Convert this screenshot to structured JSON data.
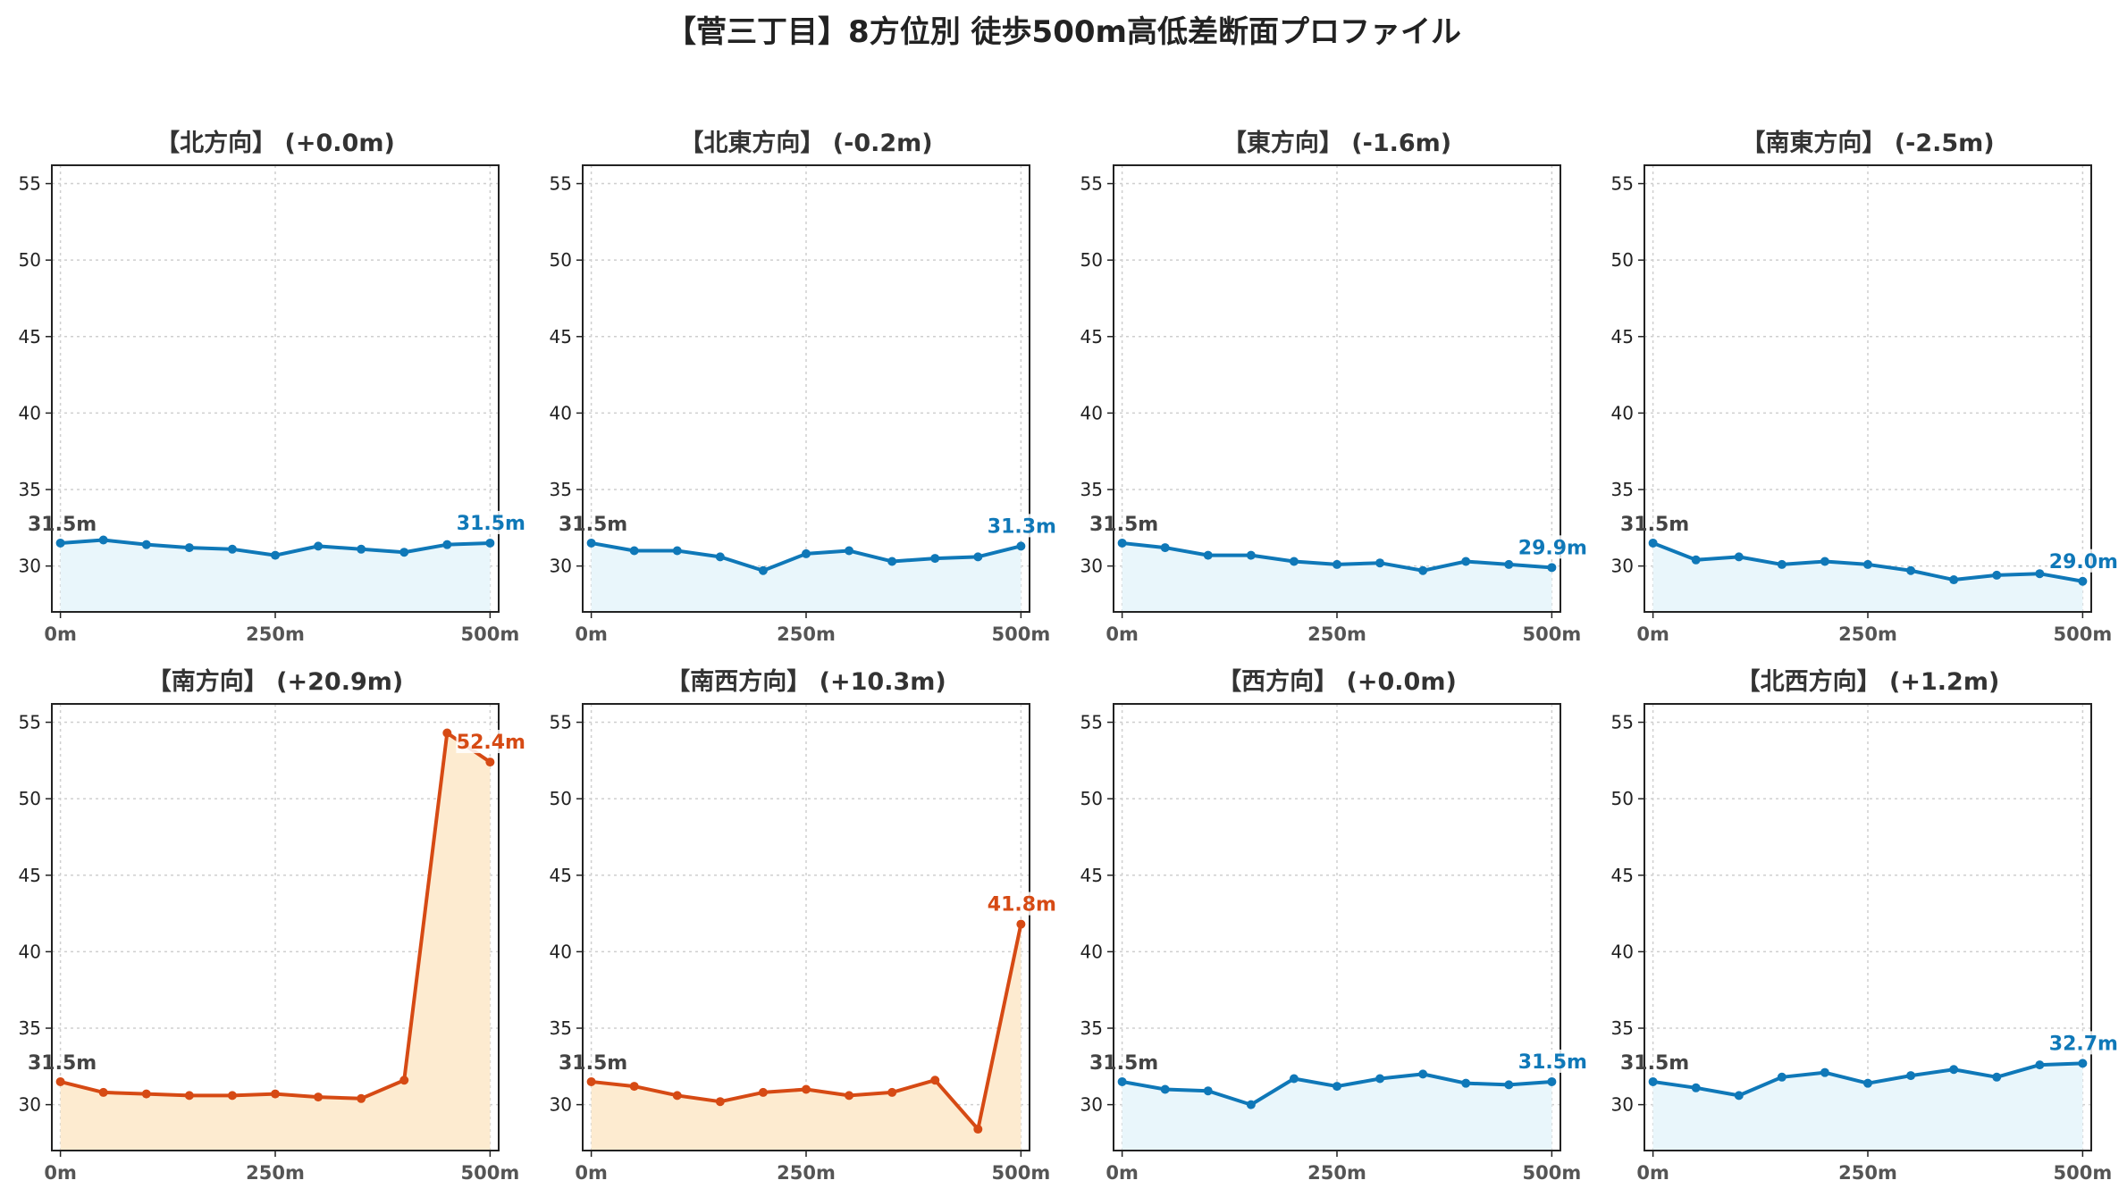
{
  "title": "【菅三丁目】8方位別 徒歩500m高低差断面プロファイル",
  "colors": {
    "up_line": "#d64a14",
    "up_fill": "#fdebd0",
    "down_line": "#0f78b8",
    "down_fill": "#e9f6fb",
    "start_label": "#444444"
  },
  "chart_data": [
    {
      "type": "line",
      "title": "【北方向】 (+0.0m)",
      "x": [
        0,
        50,
        100,
        150,
        200,
        250,
        300,
        350,
        400,
        450,
        500
      ],
      "values": [
        31.5,
        31.7,
        31.4,
        31.2,
        31.1,
        30.7,
        31.3,
        31.1,
        30.9,
        31.4,
        31.5
      ],
      "start_label": "31.5m",
      "end_label": "31.5m",
      "trend": "down",
      "xticks": [
        "0m",
        "250m",
        "500m"
      ],
      "yticks": [
        30,
        35,
        40,
        45,
        50,
        55
      ],
      "ylim": [
        27,
        56.2
      ],
      "xlim": [
        -10,
        510
      ],
      "grid": true
    },
    {
      "type": "line",
      "title": "【北東方向】 (-0.2m)",
      "x": [
        0,
        50,
        100,
        150,
        200,
        250,
        300,
        350,
        400,
        450,
        500
      ],
      "values": [
        31.5,
        31.0,
        31.0,
        30.6,
        29.7,
        30.8,
        31.0,
        30.3,
        30.5,
        30.6,
        31.3
      ],
      "start_label": "31.5m",
      "end_label": "31.3m",
      "trend": "down",
      "xticks": [
        "0m",
        "250m",
        "500m"
      ],
      "yticks": [
        30,
        35,
        40,
        45,
        50,
        55
      ],
      "ylim": [
        27,
        56.2
      ],
      "xlim": [
        -10,
        510
      ],
      "grid": true
    },
    {
      "type": "line",
      "title": "【東方向】 (-1.6m)",
      "x": [
        0,
        50,
        100,
        150,
        200,
        250,
        300,
        350,
        400,
        450,
        500
      ],
      "values": [
        31.5,
        31.2,
        30.7,
        30.7,
        30.3,
        30.1,
        30.2,
        29.7,
        30.3,
        30.1,
        29.9
      ],
      "start_label": "31.5m",
      "end_label": "29.9m",
      "trend": "down",
      "xticks": [
        "0m",
        "250m",
        "500m"
      ],
      "yticks": [
        30,
        35,
        40,
        45,
        50,
        55
      ],
      "ylim": [
        27,
        56.2
      ],
      "xlim": [
        -10,
        510
      ],
      "grid": true
    },
    {
      "type": "line",
      "title": "【南東方向】 (-2.5m)",
      "x": [
        0,
        50,
        100,
        150,
        200,
        250,
        300,
        350,
        400,
        450,
        500
      ],
      "values": [
        31.5,
        30.4,
        30.6,
        30.1,
        30.3,
        30.1,
        29.7,
        29.1,
        29.4,
        29.5,
        29.0
      ],
      "start_label": "31.5m",
      "end_label": "29.0m",
      "trend": "down",
      "xticks": [
        "0m",
        "250m",
        "500m"
      ],
      "yticks": [
        30,
        35,
        40,
        45,
        50,
        55
      ],
      "ylim": [
        27,
        56.2
      ],
      "xlim": [
        -10,
        510
      ],
      "grid": true
    },
    {
      "type": "line",
      "title": "【南方向】 (+20.9m)",
      "x": [
        0,
        50,
        100,
        150,
        200,
        250,
        300,
        350,
        400,
        450,
        500
      ],
      "values": [
        31.5,
        30.8,
        30.7,
        30.6,
        30.6,
        30.7,
        30.5,
        30.4,
        31.6,
        54.3,
        52.4
      ],
      "start_label": "31.5m",
      "end_label": "52.4m",
      "trend": "up",
      "xticks": [
        "0m",
        "250m",
        "500m"
      ],
      "yticks": [
        30,
        35,
        40,
        45,
        50,
        55
      ],
      "ylim": [
        27,
        56.2
      ],
      "xlim": [
        -10,
        510
      ],
      "grid": true
    },
    {
      "type": "line",
      "title": "【南西方向】 (+10.3m)",
      "x": [
        0,
        50,
        100,
        150,
        200,
        250,
        300,
        350,
        400,
        450,
        500
      ],
      "values": [
        31.5,
        31.2,
        30.6,
        30.2,
        30.8,
        31.0,
        30.6,
        30.8,
        31.6,
        28.4,
        41.8
      ],
      "start_label": "31.5m",
      "end_label": "41.8m",
      "trend": "up",
      "xticks": [
        "0m",
        "250m",
        "500m"
      ],
      "yticks": [
        30,
        35,
        40,
        45,
        50,
        55
      ],
      "ylim": [
        27,
        56.2
      ],
      "xlim": [
        -10,
        510
      ],
      "grid": true
    },
    {
      "type": "line",
      "title": "【西方向】 (+0.0m)",
      "x": [
        0,
        50,
        100,
        150,
        200,
        250,
        300,
        350,
        400,
        450,
        500
      ],
      "values": [
        31.5,
        31.0,
        30.9,
        30.0,
        31.7,
        31.2,
        31.7,
        32.0,
        31.4,
        31.3,
        31.5
      ],
      "start_label": "31.5m",
      "end_label": "31.5m",
      "trend": "down",
      "xticks": [
        "0m",
        "250m",
        "500m"
      ],
      "yticks": [
        30,
        35,
        40,
        45,
        50,
        55
      ],
      "ylim": [
        27,
        56.2
      ],
      "xlim": [
        -10,
        510
      ],
      "grid": true
    },
    {
      "type": "line",
      "title": "【北西方向】 (+1.2m)",
      "x": [
        0,
        50,
        100,
        150,
        200,
        250,
        300,
        350,
        400,
        450,
        500
      ],
      "values": [
        31.5,
        31.1,
        30.6,
        31.8,
        32.1,
        31.4,
        31.9,
        32.3,
        31.8,
        32.6,
        32.7
      ],
      "start_label": "31.5m",
      "end_label": "32.7m",
      "trend": "down",
      "xticks": [
        "0m",
        "250m",
        "500m"
      ],
      "yticks": [
        30,
        35,
        40,
        45,
        50,
        55
      ],
      "ylim": [
        27,
        56.2
      ],
      "xlim": [
        -10,
        510
      ],
      "grid": true
    }
  ]
}
